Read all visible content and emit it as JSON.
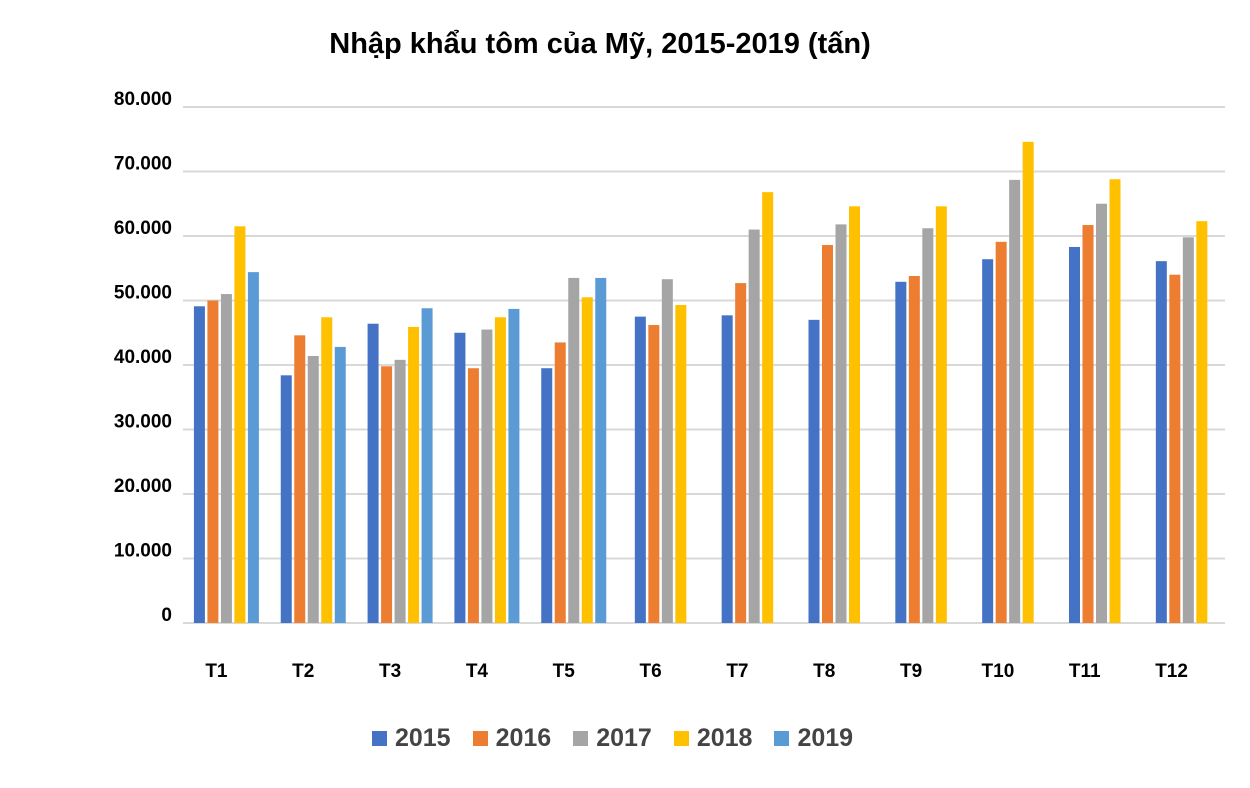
{
  "chart_data": {
    "type": "bar",
    "title": "Nhập khẩu tôm của Mỹ, 2015-2019 (tấn)",
    "xlabel": "",
    "ylabel": "",
    "ylim": [
      0,
      80000
    ],
    "yticks": [
      "0",
      "10.000",
      "20.000",
      "30.000",
      "40.000",
      "50.000",
      "60.000",
      "70.000",
      "80.000"
    ],
    "grid": true,
    "legend_position": "bottom",
    "categories": [
      "T1",
      "T2",
      "T3",
      "T4",
      "T5",
      "T6",
      "T7",
      "T8",
      "T9",
      "T10",
      "T11",
      "T12"
    ],
    "series": [
      {
        "name": "2015",
        "color": "#4472C4",
        "values": [
          49100,
          38400,
          46400,
          45000,
          39500,
          47500,
          47700,
          47000,
          52900,
          56400,
          58300,
          56100
        ]
      },
      {
        "name": "2016",
        "color": "#ED7D31",
        "values": [
          50000,
          44600,
          39800,
          39500,
          43500,
          46200,
          52700,
          58600,
          53800,
          59100,
          61700,
          54000
        ]
      },
      {
        "name": "2017",
        "color": "#A5A5A5",
        "values": [
          51000,
          41400,
          40800,
          45500,
          53500,
          53300,
          61000,
          61800,
          61200,
          68700,
          65000,
          59800
        ]
      },
      {
        "name": "2018",
        "color": "#FFC000",
        "values": [
          61500,
          47400,
          45900,
          47400,
          50500,
          49300,
          66800,
          64600,
          64600,
          74600,
          68800,
          62300
        ]
      },
      {
        "name": "2019",
        "color": "#5B9BD5",
        "values": [
          54400,
          42800,
          48800,
          48700,
          53500,
          null,
          null,
          null,
          null,
          null,
          null,
          null
        ]
      }
    ]
  }
}
